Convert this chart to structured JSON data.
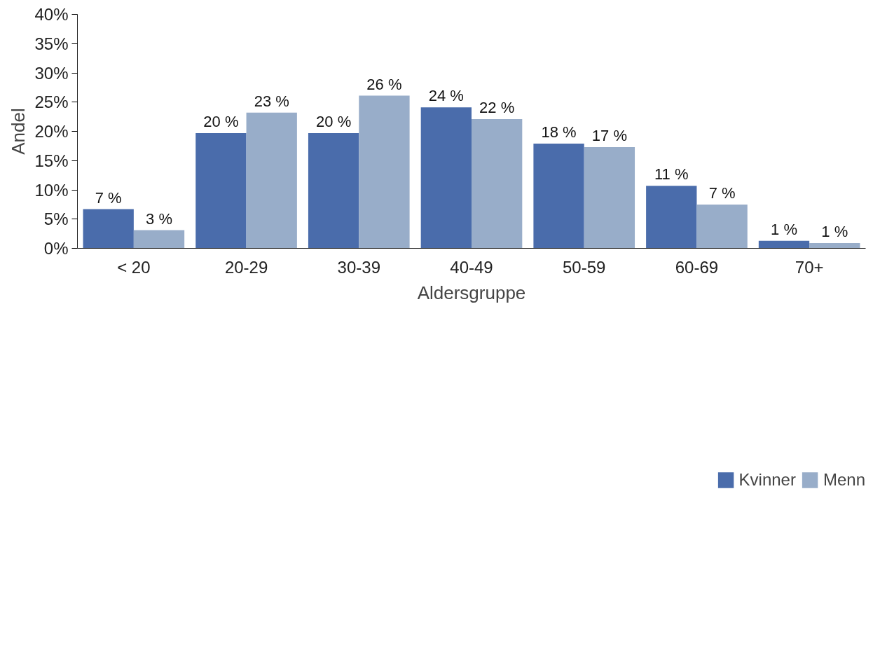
{
  "chart_data": {
    "type": "bar",
    "xlabel": "Aldersgruppe",
    "ylabel": "Andel",
    "categories": [
      "< 20",
      "20-29",
      "30-39",
      "40-49",
      "50-59",
      "60-69",
      "70+"
    ],
    "series": [
      {
        "name": "Kvinner",
        "color": "#4a6cab",
        "values": [
          6.7,
          19.7,
          19.7,
          24.1,
          17.9,
          10.7,
          1.3
        ],
        "value_labels": [
          "7 %",
          "20 %",
          "20 %",
          "24 %",
          "18 %",
          "11 %",
          "1 %"
        ]
      },
      {
        "name": "Menn",
        "color": "#98adc9",
        "values": [
          3.1,
          23.2,
          26.1,
          22.1,
          17.3,
          7.5,
          0.9
        ],
        "value_labels": [
          "3 %",
          "23 %",
          "26 %",
          "22 %",
          "17 %",
          "7 %",
          "1 %"
        ]
      }
    ],
    "ylim": [
      0,
      40
    ],
    "yticks": [
      {
        "value": 0,
        "label": "0%"
      },
      {
        "value": 5,
        "label": "5%"
      },
      {
        "value": 10,
        "label": "10%"
      },
      {
        "value": 15,
        "label": "15%"
      },
      {
        "value": 20,
        "label": "20%"
      },
      {
        "value": 25,
        "label": "25%"
      },
      {
        "value": 30,
        "label": "30%"
      },
      {
        "value": 35,
        "label": "35%"
      },
      {
        "value": 40,
        "label": "40%"
      }
    ],
    "grid": false,
    "legend": "bottom"
  }
}
